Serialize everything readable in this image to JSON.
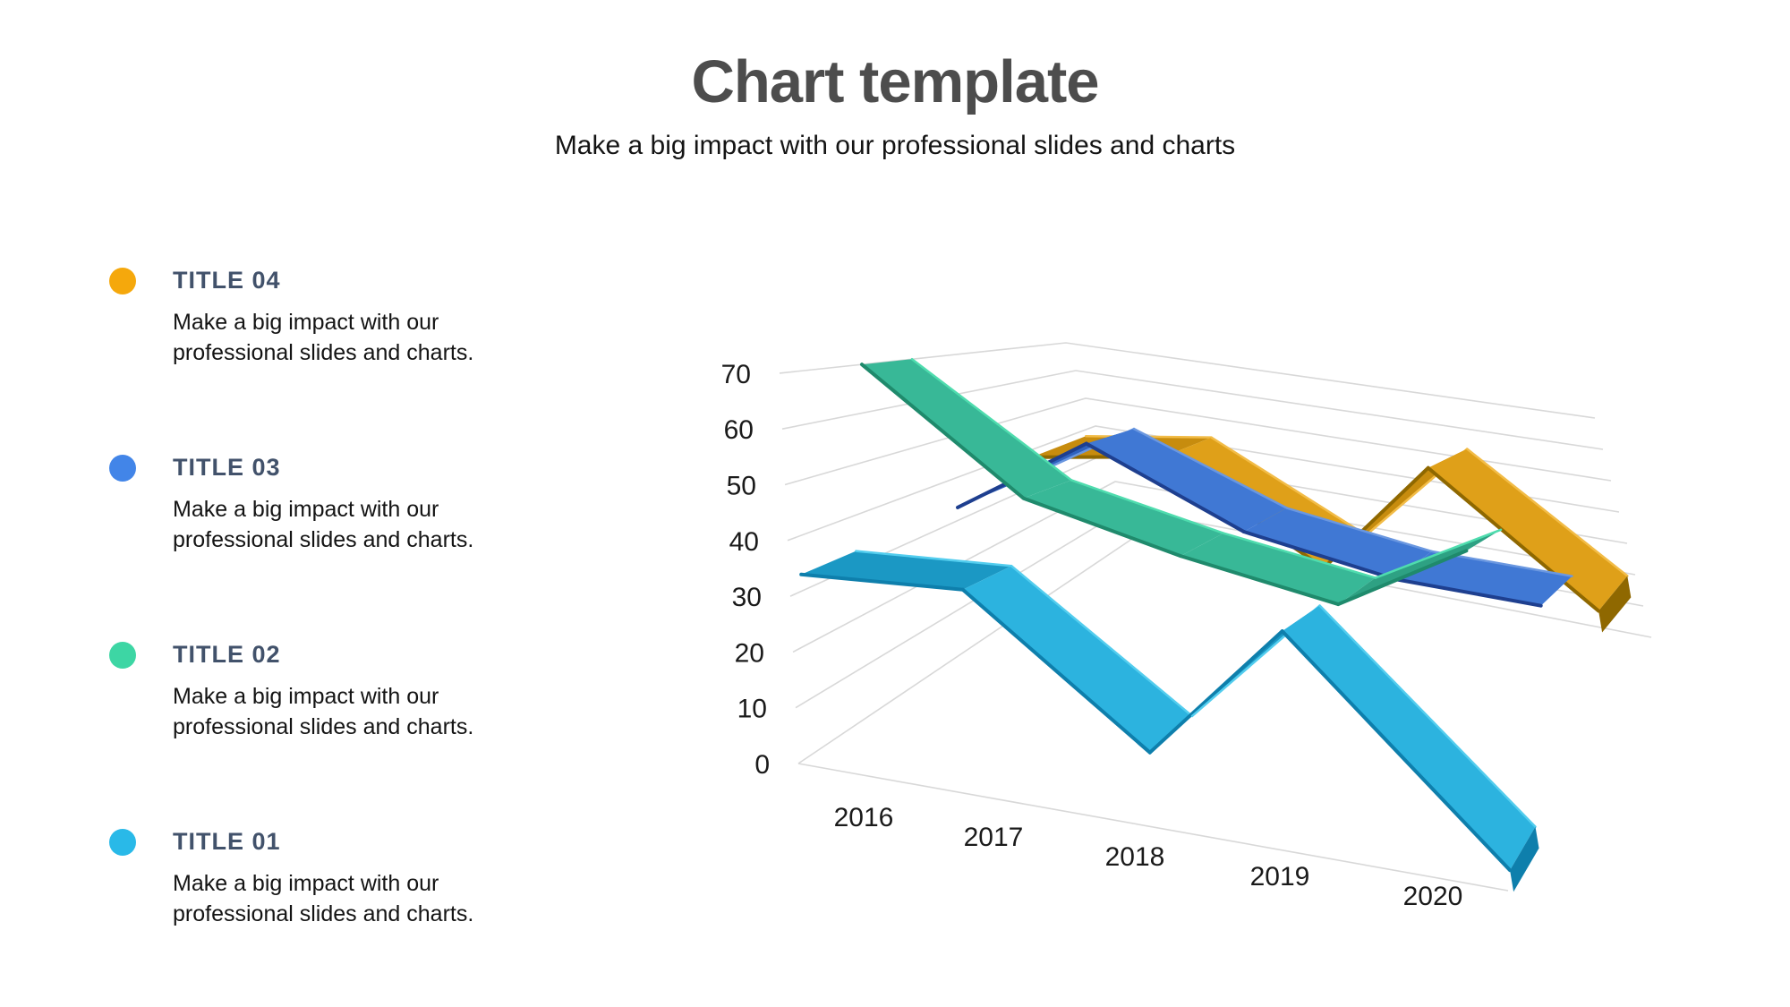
{
  "header": {
    "title": "Chart template",
    "subtitle": "Make a big impact with our professional slides and charts"
  },
  "legend": {
    "items": [
      {
        "id": "title-04",
        "label": "TITLE 04",
        "color": "#F5A80C",
        "description": "Make a big impact with our professional slides and charts."
      },
      {
        "id": "title-03",
        "label": "TITLE 03",
        "color": "#4285E8",
        "description": "Make a big impact with our professional slides and charts."
      },
      {
        "id": "title-02",
        "label": "TITLE 02",
        "color": "#3DD6A4",
        "description": "Make a big impact with our professional slides and charts."
      },
      {
        "id": "title-01",
        "label": "TITLE 01",
        "color": "#29B9E8",
        "description": "Make a big impact with our professional slides and charts."
      }
    ]
  },
  "chart_data": {
    "type": "line",
    "style": "3d-ribbon",
    "title": "",
    "xlabel": "",
    "ylabel": "",
    "categories": [
      "2016",
      "2017",
      "2018",
      "2019",
      "2020"
    ],
    "y_ticks": [
      0,
      10,
      20,
      30,
      40,
      50,
      60,
      70
    ],
    "ylim": [
      0,
      70
    ],
    "grid": true,
    "legend_position": "left",
    "series": [
      {
        "name": "TITLE 01",
        "depth_row": 0.5,
        "values": [
          33,
          36,
          12,
          40,
          2
        ],
        "face": "#2CB3DF",
        "shade": "#1B98C4",
        "edge": "#0E7FAC",
        "light": "#53CDEE"
      },
      {
        "name": "TITLE 02",
        "depth_row": 1.5,
        "values": [
          70,
          48,
          42,
          38,
          55
        ],
        "face": "#38B897",
        "shade": "#2EA183",
        "edge": "#1F8A6C",
        "light": "#4FDCAE"
      },
      {
        "name": "TITLE 03",
        "depth_row": 2.5,
        "values": [
          33,
          55,
          40,
          35,
          35
        ],
        "face": "#4078D4",
        "shade": "#2F62BE",
        "edge": "#1E3F8F",
        "light": "#6A97E0"
      },
      {
        "name": "TITLE 04",
        "depth_row": 3.5,
        "values": [
          38,
          45,
          20,
          55,
          22
        ],
        "face": "#DFA019",
        "shade": "#C78C0E",
        "edge": "#8F6800",
        "light": "#F2BC47"
      }
    ],
    "grid_color": "#D8D8D8"
  }
}
